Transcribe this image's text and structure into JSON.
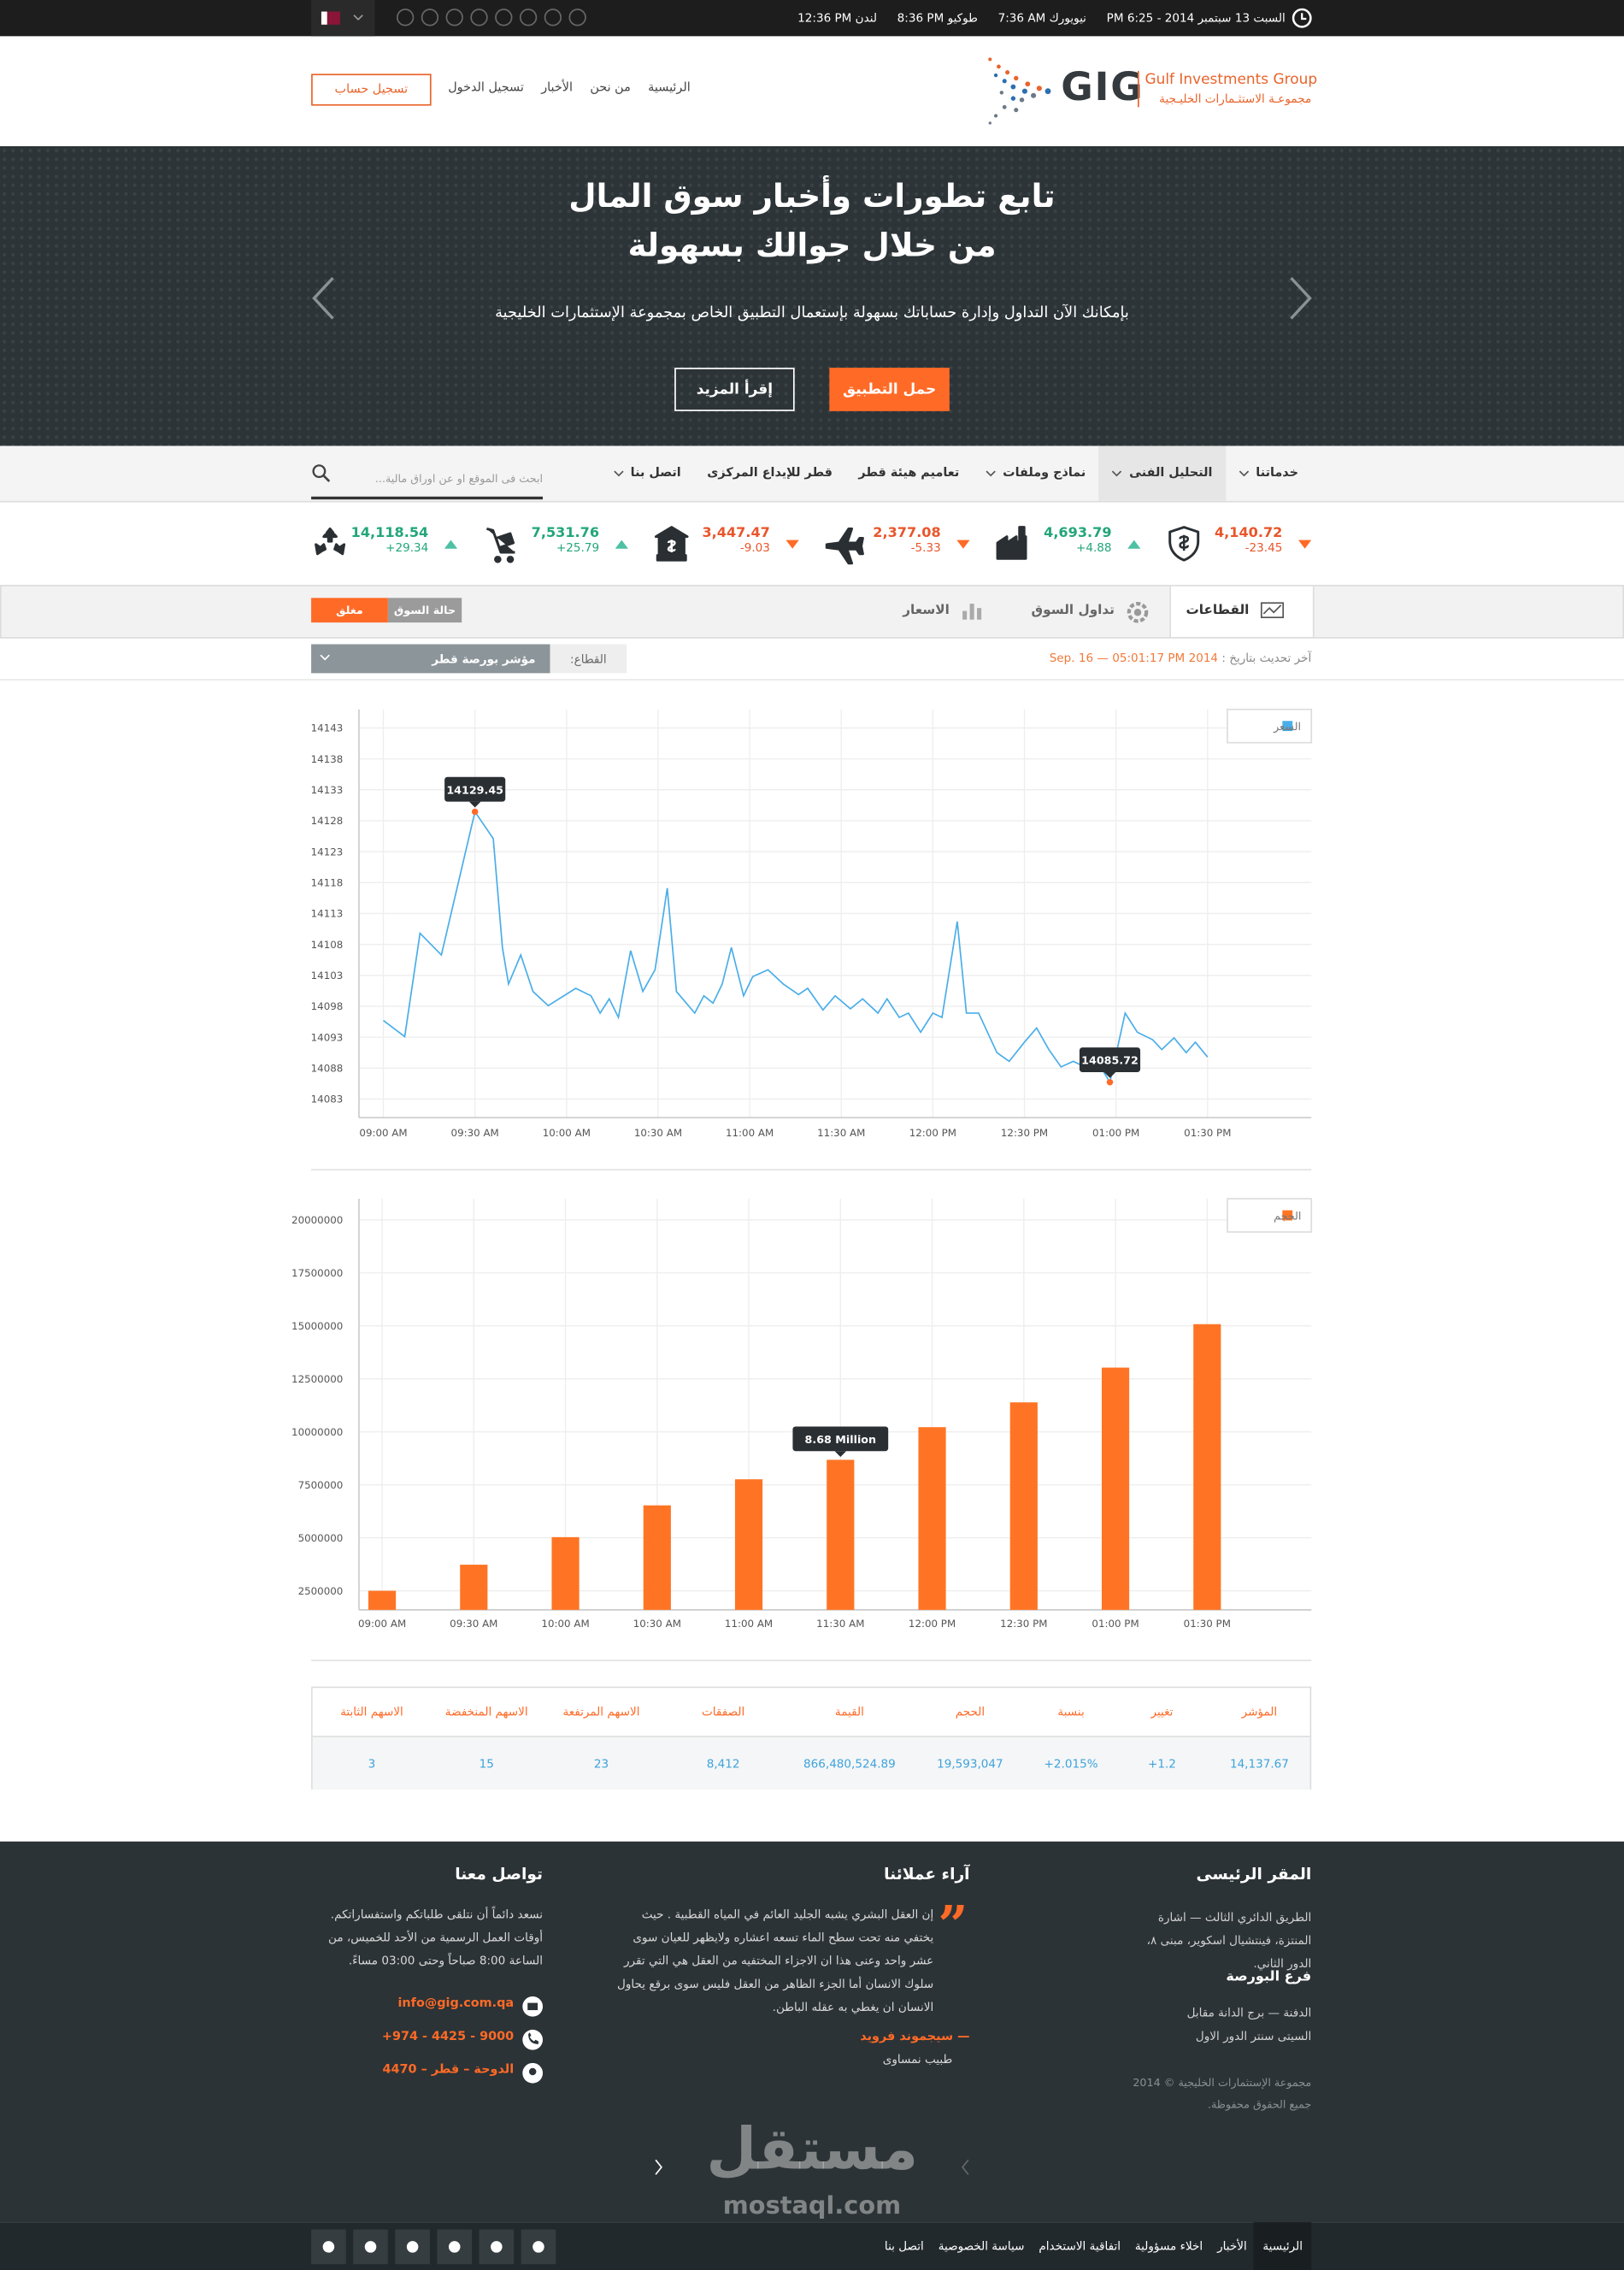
{
  "top_bar": {
    "date": "السبت 13 سبتمبر 2014 - 6:25 PM",
    "clocks": [
      {
        "city": "نيويورك",
        "time": "7:36 AM"
      },
      {
        "city": "طوكيو",
        "time": "8:36 PM"
      },
      {
        "city": "لندن",
        "time": "12:36 PM"
      }
    ]
  },
  "header": {
    "logo": "GIG",
    "logo_en": "Gulf Investments Group",
    "logo_ar": "مجموعـة الاستثـمارات الخليـجية",
    "nav": [
      "الرئيسية",
      "من نحن",
      "الأخبار",
      "تسجيل الدخول"
    ],
    "register": "تسجيل حساب"
  },
  "hero": {
    "title_lines": [
      "تابع تطورات وأخبار سوق المال",
      "من خلال جوالك بسهولة"
    ],
    "text": "بإمكانك الآن التداول وإدارة حساباتك بسهولة بإستعمال التطبيق الخاص بمجموعة الإستثمارات الخليجية",
    "buttons": [
      "حمل التطبيق",
      "إقرأ المزيد"
    ]
  },
  "menu": {
    "items": [
      "خدماتنا",
      "التحليل الفنى",
      "نماذج وملفات",
      "تعاميم هيئة قطر",
      "قطر للإيداع المركزى",
      "اتصل بنا"
    ],
    "search_placeholder": "ابحث فى الموقع او عن اوراق مالية..."
  },
  "tickers": [
    {
      "value": "4,140.72",
      "change": "-23.45"
    },
    {
      "value": "4,693.79",
      "change": "+4.88"
    },
    {
      "value": "2,377.08",
      "change": "-5.33"
    },
    {
      "value": "3,447.47",
      "change": "-9.03"
    },
    {
      "value": "7,531.76",
      "change": "+25.79"
    },
    {
      "value": "14,118.54",
      "change": "+29.34"
    }
  ],
  "tabs": {
    "items": [
      "القطاعات",
      "تداول السوق",
      "الاسعار"
    ],
    "market_status_label": "حالة السوق",
    "market_status": "مغلق"
  },
  "update": {
    "label": "آخر تحديث بتاريخ :",
    "time": "2014 Sep. 16 — 05:01:17 PM"
  },
  "sector": {
    "label": "القطاع:",
    "value": "مؤشر بورصة قطر"
  },
  "price_chart": {
    "type": "line",
    "legend": "السعر",
    "color": "#4aaee8",
    "x": [
      "09:00 AM",
      "09:07 AM",
      "09:12 AM",
      "09:19 AM",
      "09:30 AM",
      "09:36 AM",
      "09:39 AM",
      "09:41 AM",
      "09:45 AM",
      "09:49 AM",
      "09:54 AM",
      "10:03 AM",
      "10:08 AM",
      "10:11 AM",
      "10:14 AM",
      "10:17 AM",
      "10:21 AM",
      "10:25 AM",
      "10:29 AM",
      "10:33 AM",
      "10:36 AM",
      "10:42 AM",
      "10:45 AM",
      "10:48 AM",
      "10:51 AM",
      "10:54 AM",
      "10:58 AM",
      "11:01 AM",
      "11:06 AM",
      "11:11 AM",
      "11:16 AM",
      "11:19 AM",
      "11:24 AM",
      "11:28 AM",
      "11:33 AM",
      "11:37 AM",
      "11:42 AM",
      "11:45 AM",
      "11:49 AM",
      "11:52 AM",
      "11:56 AM",
      "12:00 PM",
      "12:03 PM",
      "12:08 PM",
      "12:11 PM",
      "12:15 PM",
      "12:21 PM",
      "12:25 PM",
      "12:30 PM",
      "12:34 PM",
      "12:38 PM",
      "12:42 PM",
      "12:46 PM",
      "12:49 PM",
      "12:53 PM",
      "12:58 PM",
      "01:03 PM",
      "01:07 PM",
      "01:12 PM",
      "01:15 PM",
      "01:19 PM",
      "01:23 PM",
      "01:26 PM",
      "01:30 PM"
    ],
    "values": [
      14095.7,
      14093.1,
      14109.8,
      14106.3,
      14129.45,
      14125.1,
      14107.5,
      14101.6,
      14106.3,
      14100.4,
      14098.1,
      14100.9,
      14099.7,
      14096.9,
      14099.2,
      14096.2,
      14107.0,
      14100.4,
      14103.9,
      14117.1,
      14100.4,
      14096.9,
      14099.7,
      14098.5,
      14101.6,
      14107.5,
      14099.7,
      14102.8,
      14103.9,
      14101.6,
      14099.9,
      14100.9,
      14097.4,
      14099.7,
      14097.6,
      14099.2,
      14096.9,
      14099.2,
      14096.2,
      14096.9,
      14093.8,
      14096.9,
      14096.2,
      14111.7,
      14096.9,
      14096.9,
      14090.5,
      14089.1,
      14092.2,
      14094.5,
      14091.0,
      14088.2,
      14089.1,
      14088.4,
      14089.8,
      14085.72,
      14096.9,
      14093.8,
      14092.6,
      14091.0,
      14092.9,
      14090.5,
      14092.2,
      14089.8
    ],
    "value_labels": [
      null,
      null,
      null,
      null,
      "14129.45",
      null,
      null,
      null,
      null,
      null,
      null,
      null,
      null,
      null,
      null,
      null,
      null,
      null,
      null,
      null,
      null,
      null,
      null,
      null,
      null,
      null,
      null,
      null,
      null,
      null,
      null,
      null,
      null,
      null,
      null,
      null,
      null,
      null,
      null,
      null,
      null,
      null,
      null,
      null,
      null,
      null,
      null,
      null,
      null,
      null,
      null,
      null,
      null,
      null,
      null,
      "14085.72",
      null,
      null,
      null,
      null,
      null,
      null,
      null,
      null
    ],
    "xlim": [
      "08:52 AM",
      "02:04 PM"
    ],
    "xticks": [
      "09:00 AM",
      "09:30 AM",
      "10:00 AM",
      "10:30 AM",
      "11:00 AM",
      "11:30 AM",
      "12:00 PM",
      "12:30 PM",
      "01:00 PM",
      "01:30 PM"
    ],
    "ylim": [
      14080,
      14146
    ],
    "yticks": [
      14083,
      14088,
      14093,
      14098,
      14103,
      14108,
      14113,
      14118,
      14123,
      14128,
      14133,
      14138,
      14143
    ],
    "grid": true
  },
  "volume_chart": {
    "type": "bar",
    "legend": "الحجم",
    "color": "#ff7424",
    "categories": [
      "09:00 AM",
      "09:30 AM",
      "10:00 AM",
      "10:30 AM",
      "11:00 AM",
      "11:30 AM",
      "12:00 PM",
      "12:30 PM",
      "01:00 PM",
      "01:30 PM"
    ],
    "values": [
      2500000,
      3730000,
      5030000,
      6530000,
      7760000,
      8680000,
      10220000,
      11390000,
      13030000,
      15080000
    ],
    "value_labels": [
      null,
      null,
      null,
      null,
      null,
      "8.68 Million",
      null,
      null,
      null,
      null
    ],
    "ylim": [
      1600000,
      21000000
    ],
    "yticks": [
      2500000,
      5000000,
      7500000,
      10000000,
      12500000,
      15000000,
      17500000,
      20000000
    ],
    "grid": true
  },
  "table": {
    "headers": [
      "المؤشر",
      "تغيير",
      "بنسبة",
      "الحجم",
      "القيمة",
      "الصفقات",
      "الاسهم المرتفعة",
      "الاسهم المنخفضة",
      "الاسهم الثابتة"
    ],
    "rows": [
      [
        "14,137.67",
        "+1.2",
        "+2.015%",
        "19,593,047",
        "866,480,524.89",
        "8,412",
        "23",
        "15",
        "3"
      ]
    ]
  },
  "footer": {
    "hq": {
      "title": "المقر الرئيسى",
      "address": "الطريق الدائري الثالث — اشارة المنتزة، فينتشيال اسكوير، مبنى ٨، الدور الثاني."
    },
    "branch": {
      "title": "فرع البورصة",
      "address": "الدفنة — برج الدانة مقابل السيتى سنتر الدور الاول"
    },
    "copyright": "مجموعة الإستثمارات الخليجية © 2014 جميع الحقوق محفوظة.",
    "testimonials": {
      "title": "آراء عملائنا",
      "quote": "إن العقل البشري يشبه الجليد العائم في المياه القطبية . حيث يختفي منه تحت سطح الماء تسعه اعشاره ولايظهر للعيان سوى عشر واحد وعنى هذا ان الاجزاء المختفيه من العقل هي التي تقرر سلوك الانسان أما الجزء الظاهر من العقل فليس سوى برقع يحاول الانسان ان يغطي به عقله الباطن.",
      "author": "— سيجموند فرويد",
      "role": "طبيب نمساوى"
    },
    "contact": {
      "title": "تواصل معنا",
      "text": "نسعد دائماً أن نتلقى طلباتكم واستفساراتكم. أوقات العمل الرسمية من الأحد للخميس، من الساعة 8:00 صباحاً وحتى 03:00 مساءً.",
      "email": "info@gig.com.qa",
      "phone": "+974 - 4425 - 9000",
      "address": "الدوحة – قطر – 4470"
    },
    "watermark": [
      "مستقل",
      "mostaql.com"
    ],
    "bottom_nav": [
      "الرئيسية",
      "الأخبار",
      "اخلاء مسؤولية",
      "اتفاقية الاستخدام",
      "سياسة الخصوصية",
      "اتصل بنا"
    ]
  }
}
